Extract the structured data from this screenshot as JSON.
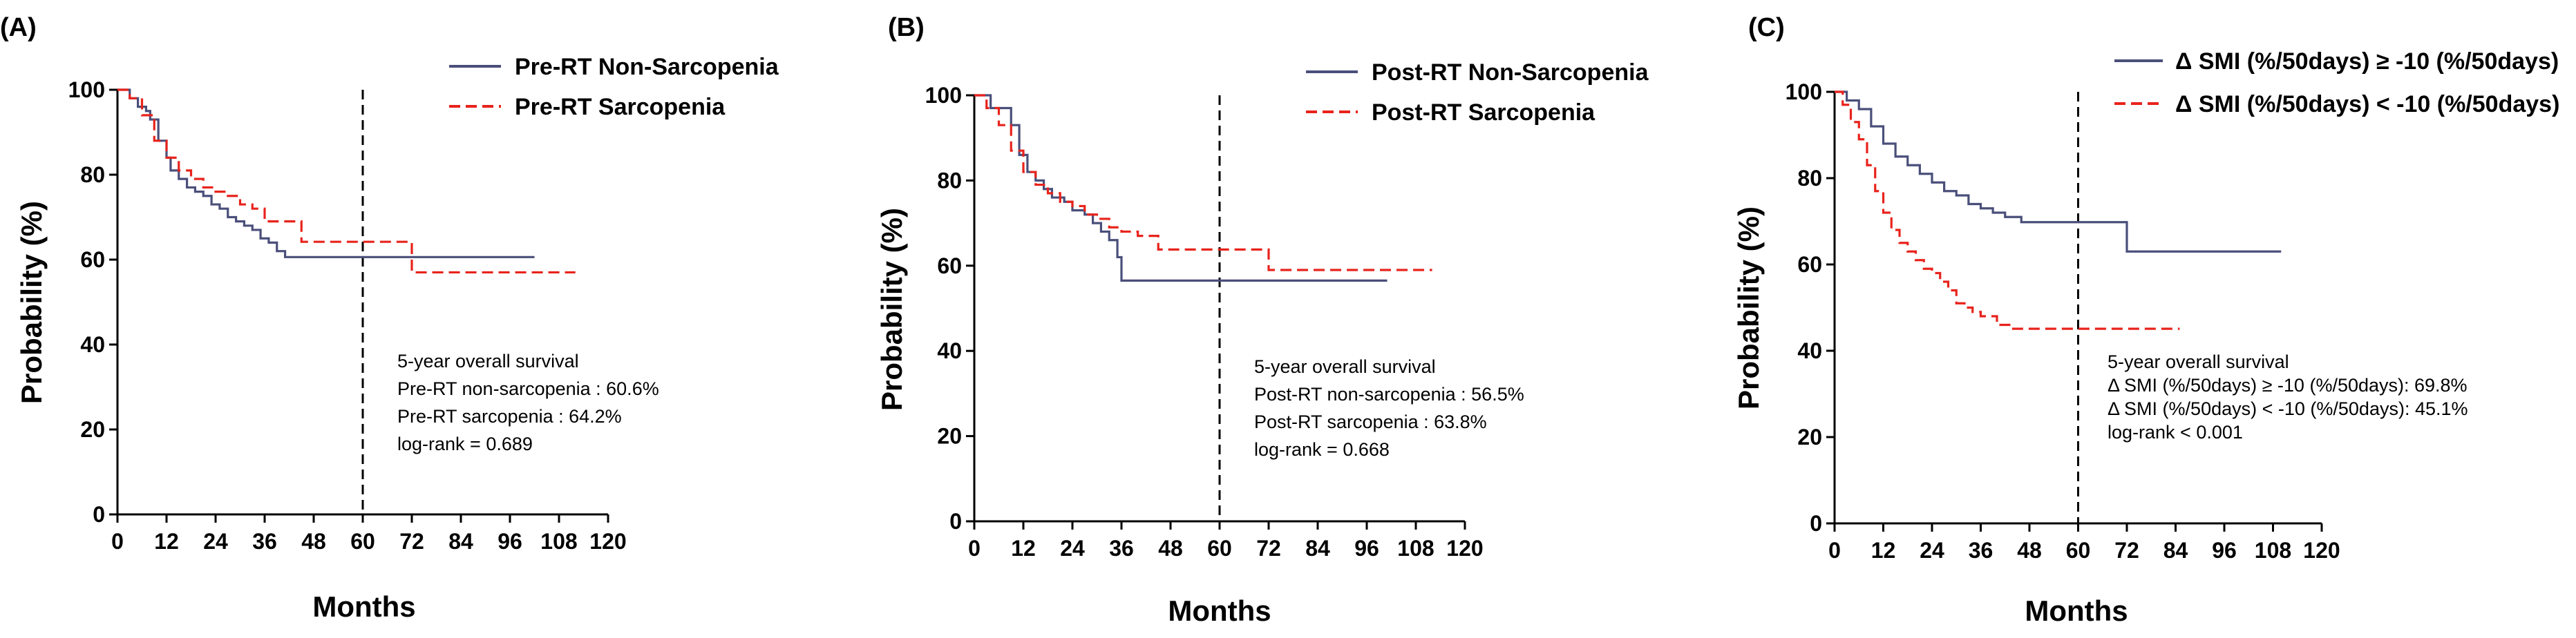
{
  "chart_data": [
    {
      "type": "line",
      "panel": "(A)",
      "xlabel": "Months",
      "ylabel": "Probability (%)",
      "xticks": [
        "0",
        "12",
        "24",
        "36",
        "48",
        "60",
        "72",
        "84",
        "96",
        "108",
        "120"
      ],
      "yticks": [
        "0",
        "20",
        "40",
        "60",
        "80",
        "100"
      ],
      "xlim": [
        0,
        120
      ],
      "ylim": [
        0,
        100
      ],
      "cutoff_x": 60,
      "series": [
        {
          "name": "Pre-RT Non-Sarcopenia",
          "color": "#4a4f7a",
          "dash": "solid",
          "x": [
            0,
            3,
            5,
            7,
            8,
            10,
            12,
            13,
            15,
            17,
            19,
            21,
            23,
            25,
            27,
            29,
            31,
            33,
            35,
            37,
            39,
            41,
            43,
            102
          ],
          "y": [
            100,
            98,
            96,
            95,
            93,
            88,
            84,
            81,
            79,
            77,
            76,
            75,
            73,
            72,
            70,
            69,
            68,
            67,
            65,
            64,
            62,
            60.6,
            60.6,
            60.6
          ]
        },
        {
          "name": "Pre-RT Sarcopenia",
          "color": "#e8231c",
          "dash": "dashed",
          "x": [
            0,
            3,
            6,
            9,
            12,
            15,
            18,
            21,
            24,
            27,
            30,
            33,
            36,
            41,
            45,
            72,
            112
          ],
          "y": [
            100,
            98,
            94,
            88,
            84,
            81,
            79,
            77,
            76,
            75,
            73,
            72,
            69,
            69,
            64.2,
            57,
            57
          ]
        }
      ],
      "annotations": [
        "5-year overall survival",
        "Pre-RT non-sarcopenia : 60.6%",
        "Pre-RT sarcopenia : 64.2%",
        "log-rank = 0.689"
      ]
    },
    {
      "type": "line",
      "panel": "(B)",
      "xlabel": "Months",
      "ylabel": "Probability (%)",
      "xticks": [
        "0",
        "12",
        "24",
        "36",
        "48",
        "60",
        "72",
        "84",
        "96",
        "108",
        "120"
      ],
      "yticks": [
        "0",
        "20",
        "40",
        "60",
        "80",
        "100"
      ],
      "xlim": [
        0,
        120
      ],
      "ylim": [
        0,
        100
      ],
      "cutoff_x": 60,
      "series": [
        {
          "name": "Post-RT Non-Sarcopenia",
          "color": "#4a4f7a",
          "dash": "solid",
          "x": [
            0,
            4,
            6,
            9,
            11,
            13,
            15,
            17,
            19,
            22,
            24,
            27,
            29,
            31,
            33,
            35,
            36,
            37,
            101
          ],
          "y": [
            100,
            97,
            97,
            93,
            86,
            82,
            80,
            78,
            76,
            75,
            73,
            72,
            70,
            68,
            66,
            62,
            56.5,
            56.5,
            56.5
          ]
        },
        {
          "name": "Post-RT Sarcopenia",
          "color": "#e8231c",
          "dash": "dashed",
          "x": [
            0,
            3,
            6,
            9,
            12,
            15,
            18,
            21,
            24,
            27,
            30,
            33,
            36,
            40,
            45,
            72,
            112
          ],
          "y": [
            100,
            97,
            93,
            87,
            82,
            79,
            77,
            75,
            74,
            72,
            71,
            69,
            68,
            67,
            63.8,
            59,
            59
          ]
        }
      ],
      "annotations": [
        "5-year overall survival",
        "Post-RT non-sarcopenia : 56.5%",
        "Post-RT sarcopenia : 63.8%",
        "log-rank = 0.668"
      ]
    },
    {
      "type": "line",
      "panel": "(C)",
      "xlabel": "Months",
      "ylabel": "Probability (%)",
      "xticks": [
        "0",
        "12",
        "24",
        "36",
        "48",
        "60",
        "72",
        "84",
        "96",
        "108",
        "120"
      ],
      "yticks": [
        "0",
        "20",
        "40",
        "60",
        "80",
        "100"
      ],
      "xlim": [
        0,
        120
      ],
      "ylim": [
        0,
        100
      ],
      "cutoff_x": 60,
      "series": [
        {
          "name": "Δ SMI (%/50days) ≥ -10 (%/50days)",
          "color": "#4a4f7a",
          "dash": "solid",
          "x": [
            0,
            3,
            6,
            9,
            12,
            15,
            18,
            21,
            24,
            27,
            30,
            33,
            36,
            39,
            42,
            46,
            72,
            110
          ],
          "y": [
            100,
            98,
            96,
            92,
            88,
            85,
            83,
            81,
            79,
            77,
            76,
            74,
            73,
            72,
            71,
            69.8,
            63,
            63
          ]
        },
        {
          "name": "Δ SMI (%/50days) < -10 (%/50days)",
          "color": "#e8231c",
          "dash": "dashed",
          "x": [
            0,
            2,
            4,
            6,
            8,
            10,
            12,
            14,
            16,
            18,
            20,
            22,
            24,
            26,
            28,
            30,
            32,
            34,
            36,
            40,
            44,
            85
          ],
          "y": [
            100,
            97,
            93,
            89,
            83,
            77,
            72,
            68,
            65,
            63,
            61,
            59,
            58,
            56,
            54,
            51,
            50,
            49,
            48,
            46,
            45.1,
            45.1
          ]
        }
      ],
      "annotations": [
        "5-year overall survival",
        "Δ SMI (%/50days) ≥ -10 (%/50days): 69.8%",
        "Δ SMI (%/50days) < -10 (%/50days): 45.1%",
        "log-rank < 0.001"
      ]
    }
  ]
}
